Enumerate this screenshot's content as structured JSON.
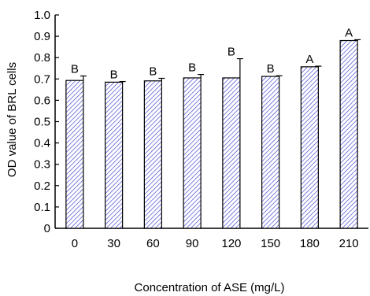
{
  "chart_data": {
    "type": "bar",
    "xlabel": "Concentration of ASE (mg/L)",
    "ylabel": "OD value of BRL cells",
    "categories": [
      "0",
      "30",
      "60",
      "90",
      "120",
      "150",
      "180",
      "210"
    ],
    "values": [
      0.693,
      0.685,
      0.691,
      0.705,
      0.705,
      0.712,
      0.757,
      0.88
    ],
    "error_bars": [
      0.021,
      0.003,
      0.012,
      0.016,
      0.09,
      0.003,
      0.003,
      0.004
    ],
    "data_labels": [
      "B",
      "B",
      "B",
      "B",
      "B",
      "B",
      "A",
      "A"
    ],
    "ylim": [
      0,
      1.0
    ],
    "yticks": [
      "0",
      "0.1",
      "0.2",
      "0.3",
      "0.4",
      "0.5",
      "0.6",
      "0.7",
      "0.8",
      "0.9",
      "1.0"
    ],
    "grid": false,
    "bar_fill": "hatched",
    "bar_color": "#3b3bd0"
  }
}
